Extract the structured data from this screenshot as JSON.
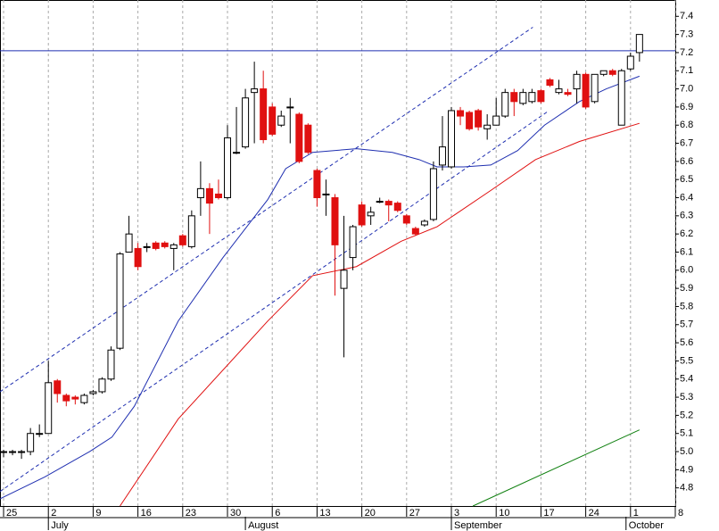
{
  "chart_data": {
    "type": "candlestick",
    "open": [
      5.0,
      5.0,
      5.0,
      5.0,
      5.1,
      5.1,
      5.39,
      5.31,
      5.3,
      5.27,
      5.32,
      5.33,
      5.4,
      5.57,
      6.1,
      6.12,
      6.13,
      6.15,
      6.15,
      6.12,
      6.19,
      6.13,
      6.4,
      6.45,
      6.42,
      6.4,
      6.65,
      6.68,
      6.98,
      7.0,
      6.9,
      6.8,
      6.9,
      6.86,
      6.8,
      6.55,
      6.42,
      6.4,
      5.9,
      6.07,
      6.36,
      6.3,
      6.38,
      6.38,
      6.37,
      6.3,
      6.23,
      6.25,
      6.28,
      6.58,
      6.57,
      6.88,
      6.87,
      6.88,
      6.78,
      6.8,
      6.85,
      6.98,
      6.92,
      6.93,
      6.99,
      7.05,
      6.98,
      6.98,
      7.0,
      7.08,
      6.93,
      7.08,
      7.1,
      6.8,
      7.11,
      7.2
    ],
    "high": [
      5.01,
      5.01,
      5.01,
      5.13,
      5.15,
      5.5,
      5.4,
      5.32,
      5.31,
      5.32,
      5.34,
      5.41,
      5.58,
      6.1,
      6.3,
      6.15,
      6.15,
      6.16,
      6.16,
      6.15,
      6.2,
      6.33,
      6.6,
      6.48,
      6.5,
      6.8,
      6.9,
      7.0,
      7.15,
      7.1,
      6.92,
      6.88,
      6.95,
      6.87,
      6.81,
      6.56,
      6.5,
      6.42,
      6.3,
      6.25,
      6.38,
      6.35,
      6.4,
      6.39,
      6.38,
      6.31,
      6.24,
      6.28,
      6.6,
      6.85,
      6.9,
      6.9,
      6.88,
      6.89,
      6.86,
      6.95,
      7.0,
      7.0,
      7.0,
      7.0,
      7.0,
      7.06,
      7.05,
      7.0,
      7.1,
      7.09,
      7.08,
      7.1,
      7.11,
      7.11,
      7.2,
      7.3
    ],
    "low": [
      4.97,
      4.98,
      4.96,
      4.98,
      5.08,
      5.1,
      5.27,
      5.25,
      5.26,
      5.26,
      5.31,
      5.32,
      5.39,
      5.56,
      6.1,
      6.0,
      6.1,
      6.11,
      6.12,
      6.0,
      6.13,
      6.12,
      6.3,
      6.2,
      6.39,
      6.39,
      6.64,
      6.67,
      6.7,
      6.7,
      6.74,
      6.79,
      6.7,
      6.59,
      6.64,
      6.35,
      6.3,
      5.86,
      5.52,
      6.0,
      6.24,
      6.25,
      6.37,
      6.27,
      6.32,
      6.25,
      6.19,
      6.24,
      6.27,
      6.55,
      6.56,
      6.8,
      6.77,
      6.77,
      6.72,
      6.8,
      6.84,
      6.85,
      6.91,
      6.92,
      6.92,
      7.01,
      6.97,
      6.96,
      6.92,
      6.89,
      6.92,
      7.07,
      7.07,
      6.8,
      7.1,
      7.15
    ],
    "close": [
      5.0,
      5.0,
      5.0,
      5.1,
      5.1,
      5.38,
      5.32,
      5.28,
      5.29,
      5.31,
      5.33,
      5.4,
      5.56,
      6.09,
      6.2,
      6.02,
      6.13,
      6.12,
      6.13,
      6.14,
      6.14,
      6.3,
      6.45,
      6.37,
      6.4,
      6.73,
      6.65,
      6.95,
      7.0,
      6.72,
      6.75,
      6.85,
      6.9,
      6.6,
      6.65,
      6.4,
      6.42,
      6.14,
      6.0,
      6.24,
      6.25,
      6.32,
      6.38,
      6.36,
      6.33,
      6.26,
      6.2,
      6.27,
      6.56,
      6.68,
      6.88,
      6.85,
      6.78,
      6.79,
      6.8,
      6.85,
      6.98,
      6.93,
      6.98,
      6.98,
      6.93,
      7.02,
      7.0,
      6.97,
      7.08,
      6.9,
      7.08,
      7.1,
      7.08,
      7.1,
      7.18,
      7.3
    ],
    "series": [
      {
        "color": "#1f2fb0",
        "x": [
          -0.4,
          4.6,
          9.6,
          12.1,
          14.6,
          19.5,
          24.5,
          29.5,
          31.5,
          34.5,
          39.4,
          43.4,
          46.4,
          48.4,
          51.4,
          54.4,
          57.4,
          60.4,
          64.3,
          67.3,
          71.0
        ],
        "values": [
          4.74,
          4.86,
          5.0,
          5.08,
          5.25,
          5.72,
          6.07,
          6.39,
          6.56,
          6.65,
          6.67,
          6.65,
          6.61,
          6.57,
          6.57,
          6.58,
          6.66,
          6.8,
          6.93,
          7.0,
          7.07
        ]
      },
      {
        "color": "#e01010",
        "x": [
          13.0,
          19.5,
          29.5,
          34.5,
          39.4,
          44.4,
          48.4,
          54.4,
          59.4,
          64.3,
          71.0
        ],
        "values": [
          4.7,
          5.18,
          5.72,
          5.97,
          6.02,
          6.16,
          6.24,
          6.44,
          6.61,
          6.71,
          6.81
        ]
      },
      {
        "color": "#108010",
        "x": [
          52.4,
          71.0
        ],
        "values": [
          4.7,
          5.12
        ]
      },
      {
        "color": "#1f2fb0",
        "x": [
          -0.4,
          75.0
        ],
        "values": [
          7.21,
          7.21
        ]
      },
      {
        "color": "#1f2fb0",
        "dash": true,
        "x": [
          -0.4,
          59.1
        ],
        "values": [
          5.33,
          7.34
        ]
      },
      {
        "color": "#1f2fb0",
        "dash": true,
        "x": [
          -0.4,
          60.9
        ],
        "values": [
          4.78,
          6.88
        ]
      }
    ],
    "xlim": [
      -0.4,
      75.0
    ],
    "ylim": [
      4.7,
      7.49
    ],
    "xticks": [
      {
        "value": 0,
        "label": "25"
      },
      {
        "value": 5,
        "label": "2"
      },
      {
        "value": 10,
        "label": "9"
      },
      {
        "value": 15,
        "label": "16"
      },
      {
        "value": 20,
        "label": "23"
      },
      {
        "value": 25,
        "label": "30"
      },
      {
        "value": 30,
        "label": "6"
      },
      {
        "value": 35,
        "label": "13"
      },
      {
        "value": 40,
        "label": "20"
      },
      {
        "value": 45,
        "label": "27"
      },
      {
        "value": 50,
        "label": "3"
      },
      {
        "value": 55,
        "label": "10"
      },
      {
        "value": 60,
        "label": "17"
      },
      {
        "value": 65,
        "label": "24"
      },
      {
        "value": 70,
        "label": "1"
      },
      {
        "value": 75,
        "label": "8"
      }
    ],
    "months": [
      {
        "value": 5,
        "label": "July"
      },
      {
        "value": 27,
        "label": "August"
      },
      {
        "value": 50,
        "label": "September"
      },
      {
        "value": 69.5,
        "label": "October"
      }
    ],
    "yticks": [
      4.8,
      4.9,
      {
        "value": 5,
        "label": "5.0"
      },
      5.1,
      5.2,
      5.3,
      5.4,
      5.5,
      5.6,
      5.7,
      5.8,
      5.9,
      {
        "value": 6,
        "label": "6.0"
      },
      6.1,
      6.2,
      6.3,
      6.4,
      6.5,
      6.6,
      6.7,
      6.8,
      6.9,
      {
        "value": 7,
        "label": "7.0"
      },
      7.1,
      7.2,
      7.3,
      7.4
    ],
    "grid": true
  }
}
